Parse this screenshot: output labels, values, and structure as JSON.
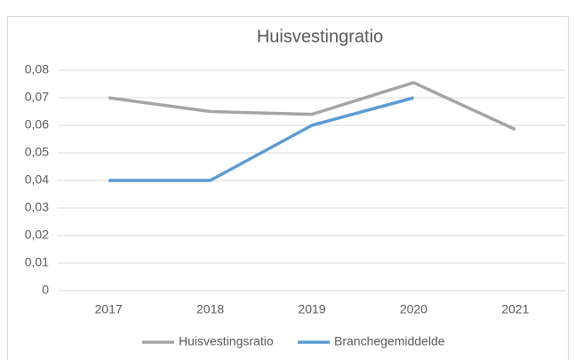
{
  "chart_data": {
    "type": "line",
    "title": "Huisvestingratio",
    "categories": [
      "2017",
      "2018",
      "2019",
      "2020",
      "2021"
    ],
    "series": [
      {
        "name": "Huisvestingsratio",
        "color": "#a5a5a5",
        "values": [
          0.07,
          0.065,
          0.064,
          0.0755,
          0.0585
        ]
      },
      {
        "name": "Branchegemiddelde",
        "color": "#5b9bd5",
        "values": [
          0.04,
          0.04,
          0.06,
          0.07,
          null
        ]
      }
    ],
    "ylim": [
      0,
      0.08
    ],
    "yticks": [
      0,
      {
        "value": 0.01,
        "label": "0,01"
      },
      {
        "value": 0.02,
        "label": "0,02"
      },
      {
        "value": 0.03,
        "label": "0,03"
      },
      {
        "value": 0.04,
        "label": "0,04"
      },
      {
        "value": 0.05,
        "label": "0,05"
      },
      {
        "value": 0.06,
        "label": "0,06"
      },
      {
        "value": 0.07,
        "label": "0,07"
      },
      {
        "value": 0.08,
        "label": "0,08"
      }
    ],
    "grid": true,
    "legend": "bottom"
  }
}
